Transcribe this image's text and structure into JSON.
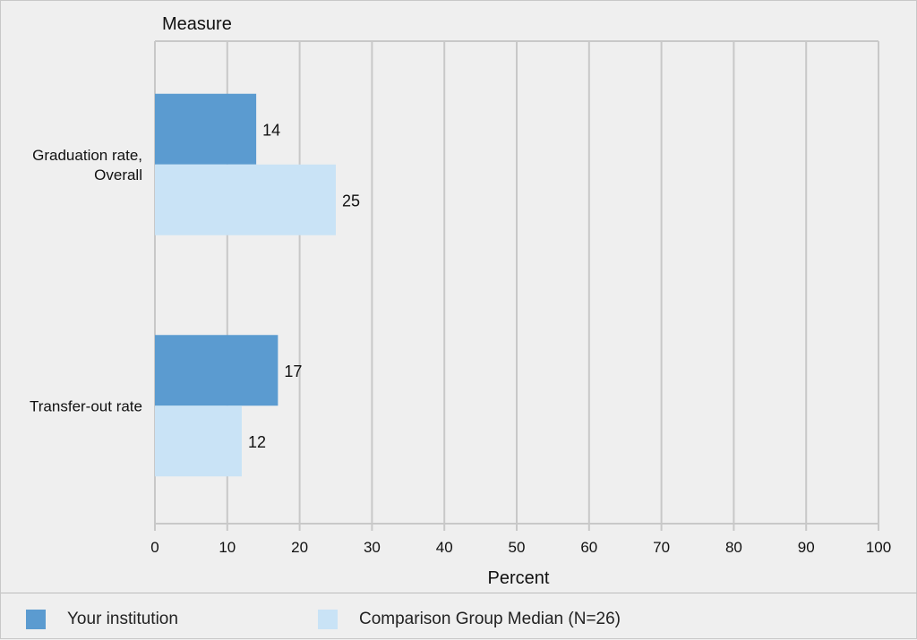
{
  "chart_data": {
    "type": "bar",
    "orientation": "horizontal",
    "categories": [
      "Graduation rate, Overall",
      "Transfer-out rate"
    ],
    "category_lines": [
      [
        "Graduation rate,",
        "Overall"
      ],
      [
        "Transfer-out rate"
      ]
    ],
    "series": [
      {
        "name": "Your institution",
        "values": [
          14,
          17
        ],
        "color": "#5b9bd0"
      },
      {
        "name": "Comparison Group Median (N=26)",
        "values": [
          25,
          12
        ],
        "color": "#c9e3f6"
      }
    ],
    "y_axis_title": "Measure",
    "xlabel": "Percent",
    "xlim": [
      0,
      100
    ],
    "x_ticks": [
      0,
      10,
      20,
      30,
      40,
      50,
      60,
      70,
      80,
      90,
      100
    ],
    "x_tick_labels": [
      "0",
      "10",
      "20",
      "30",
      "40",
      "50",
      "60",
      "70",
      "80",
      "90",
      "100"
    ],
    "grid": true,
    "legend_position": "bottom"
  },
  "colors": {
    "grid": "#c8c8c8",
    "background": "#efefef"
  }
}
